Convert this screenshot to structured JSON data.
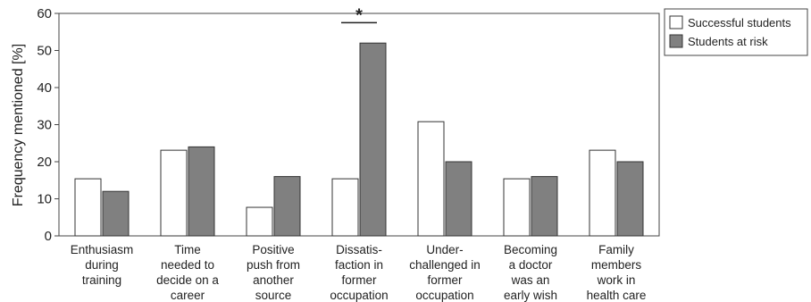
{
  "chart_data": {
    "type": "bar",
    "title": "",
    "xlabel": "",
    "ylabel": "Frequency mentioned [%]",
    "ylim": [
      0,
      60
    ],
    "yticks": [
      "0",
      "10",
      "20",
      "30",
      "40",
      "50",
      "60"
    ],
    "grid": false,
    "legend_position": "top-right",
    "categories": [
      [
        "Enthusiasm",
        "during",
        "training"
      ],
      [
        "Time",
        "needed to",
        "decide on a",
        "career"
      ],
      [
        "Positive",
        "push from",
        "another",
        "source"
      ],
      [
        "Dissatis-",
        "faction in",
        "former",
        "occupation"
      ],
      [
        "Under-",
        "challenged in",
        "former",
        "occupation"
      ],
      [
        "Becoming",
        "a doctor",
        "was an",
        "early wish"
      ],
      [
        "Family",
        "members",
        "work in",
        "health care"
      ]
    ],
    "series": [
      {
        "name": "Successful students",
        "color": "#ffffff",
        "values": [
          15.4,
          23.1,
          7.7,
          15.4,
          30.8,
          15.4,
          23.1
        ]
      },
      {
        "name": "Students at risk",
        "color": "#808080",
        "values": [
          12,
          24,
          16,
          52,
          20,
          16,
          20
        ]
      }
    ],
    "annotations": [
      {
        "text": "*",
        "category_index": 3,
        "meaning": "significance bracket"
      }
    ]
  }
}
